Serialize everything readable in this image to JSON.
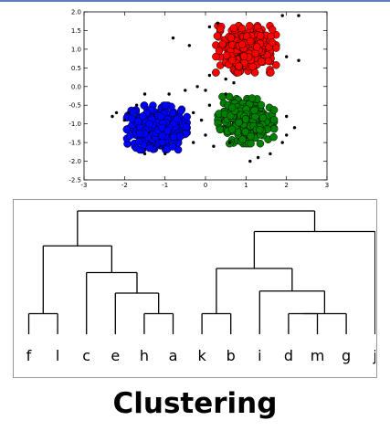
{
  "caption": "Clustering",
  "colors": {
    "red_cluster": "#ff0000",
    "green_cluster": "#008000",
    "blue_cluster": "#0000ff",
    "noise": "#000000",
    "dendrogram_lines": "#000000",
    "frame_border": "#9a9a9a",
    "top_band": "#5e7fbf"
  },
  "chart_data": [
    {
      "type": "scatter",
      "title": "",
      "xlabel": "",
      "ylabel": "",
      "xlim": [
        -3,
        3
      ],
      "ylim": [
        -2.5,
        2.0
      ],
      "xticks": [
        "-3",
        "-2",
        "-1",
        "0",
        "1",
        "2",
        "3"
      ],
      "yticks": [
        "-2.5",
        "-2.0",
        "-1.5",
        "-1.0",
        "-0.5",
        "0.0",
        "0.5",
        "1.0",
        "1.5",
        "2.0"
      ],
      "grid": false,
      "series": [
        {
          "color": "red",
          "center": [
            1.0,
            1.0
          ],
          "spread": [
            0.45,
            0.38
          ],
          "count": 320
        },
        {
          "color": "green",
          "center": [
            1.0,
            -0.9
          ],
          "spread": [
            0.42,
            0.38
          ],
          "count": 300
        },
        {
          "color": "blue",
          "center": [
            -1.2,
            -1.1
          ],
          "spread": [
            0.45,
            0.36
          ],
          "count": 320
        },
        {
          "color": "black",
          "points": [
            [
              -0.8,
              1.3
            ],
            [
              -0.4,
              1.1
            ],
            [
              0.1,
              1.6
            ],
            [
              0.3,
              1.7
            ],
            [
              1.9,
              1.9
            ],
            [
              2.3,
              1.9
            ],
            [
              2.0,
              0.8
            ],
            [
              2.3,
              0.7
            ],
            [
              -0.2,
              0.0
            ],
            [
              0.0,
              -0.1
            ],
            [
              -0.5,
              -0.1
            ],
            [
              0.5,
              -0.2
            ],
            [
              0.1,
              -0.5
            ],
            [
              -1.5,
              -0.2
            ],
            [
              -1.9,
              -0.7
            ],
            [
              -2.2,
              -0.7
            ],
            [
              -2.0,
              -0.9
            ],
            [
              -2.3,
              -0.8
            ],
            [
              -0.3,
              -0.7
            ],
            [
              -0.1,
              -0.9
            ],
            [
              0.0,
              -1.3
            ],
            [
              -0.3,
              -1.5
            ],
            [
              0.2,
              -1.6
            ],
            [
              0.6,
              -1.5
            ],
            [
              1.6,
              -1.8
            ],
            [
              1.1,
              -2.0
            ],
            [
              1.3,
              -1.9
            ],
            [
              -1.5,
              -1.8
            ],
            [
              -1.0,
              -1.8
            ],
            [
              2.0,
              -1.3
            ],
            [
              2.2,
              -1.1
            ],
            [
              1.9,
              -1.5
            ],
            [
              0.5,
              0.2
            ],
            [
              0.7,
              0.1
            ],
            [
              0.1,
              0.3
            ],
            [
              -0.9,
              -0.2
            ],
            [
              -1.7,
              -0.5
            ],
            [
              2.0,
              -0.8
            ]
          ]
        }
      ]
    },
    {
      "type": "dendrogram",
      "leaves": [
        "f",
        "l",
        "c",
        "e",
        "h",
        "a",
        "k",
        "b",
        "i",
        "d",
        "m",
        "g",
        "j"
      ],
      "merges": [
        {
          "children": [
            "f",
            "l"
          ],
          "height": 1.0
        },
        {
          "children": [
            "h",
            "a"
          ],
          "height": 1.0
        },
        {
          "children": [
            "e",
            "h+a"
          ],
          "height": 2.0
        },
        {
          "children": [
            "c",
            "e+h+a"
          ],
          "height": 3.0
        },
        {
          "children": [
            "f+l",
            "c+e+h+a"
          ],
          "height": 4.3
        },
        {
          "children": [
            "k",
            "b"
          ],
          "height": 1.0
        },
        {
          "children": [
            "d",
            "m"
          ],
          "height": 1.0
        },
        {
          "children": [
            "d+m",
            "g"
          ],
          "height": 1.0
        },
        {
          "children": [
            "i",
            "d+m+g"
          ],
          "height": 2.1
        },
        {
          "children": [
            "k+b",
            "i+d+m+g"
          ],
          "height": 3.2
        },
        {
          "children": [
            "k+b+i+d+m+g",
            "j"
          ],
          "height": 5.0
        },
        {
          "children": [
            "f+l+c+e+h+a",
            "k+b+i+d+m+g+j"
          ],
          "height": 6.0
        }
      ]
    }
  ]
}
